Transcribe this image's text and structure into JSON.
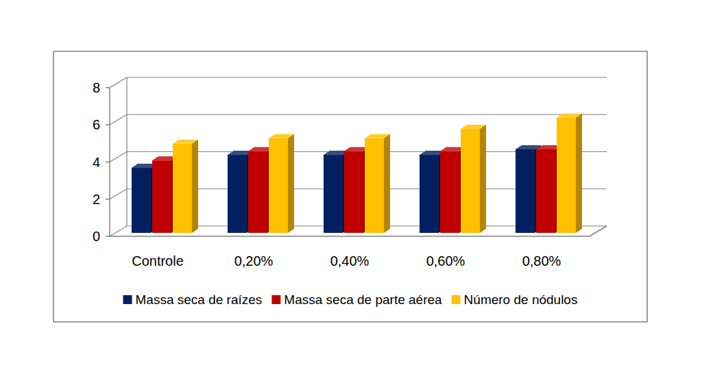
{
  "chart_data": {
    "type": "bar",
    "categories": [
      "Controle",
      "0,20%",
      "0,40%",
      "0,60%",
      "0,80%"
    ],
    "series": [
      {
        "name": "Massa seca de raízes",
        "color": "#002060",
        "values": [
          3.5,
          4.2,
          4.2,
          4.2,
          4.5
        ]
      },
      {
        "name": "Massa seca de parte aérea",
        "color": "#c00000",
        "values": [
          3.9,
          4.4,
          4.4,
          4.4,
          4.5
        ]
      },
      {
        "name": "Número de nódulos",
        "color": "#ffc000",
        "values": [
          4.8,
          5.1,
          5.1,
          5.6,
          6.2
        ]
      }
    ],
    "ylim": [
      0,
      8
    ],
    "yticks": [
      0,
      2,
      4,
      6,
      8
    ],
    "grid": true,
    "legend": "bottom"
  }
}
